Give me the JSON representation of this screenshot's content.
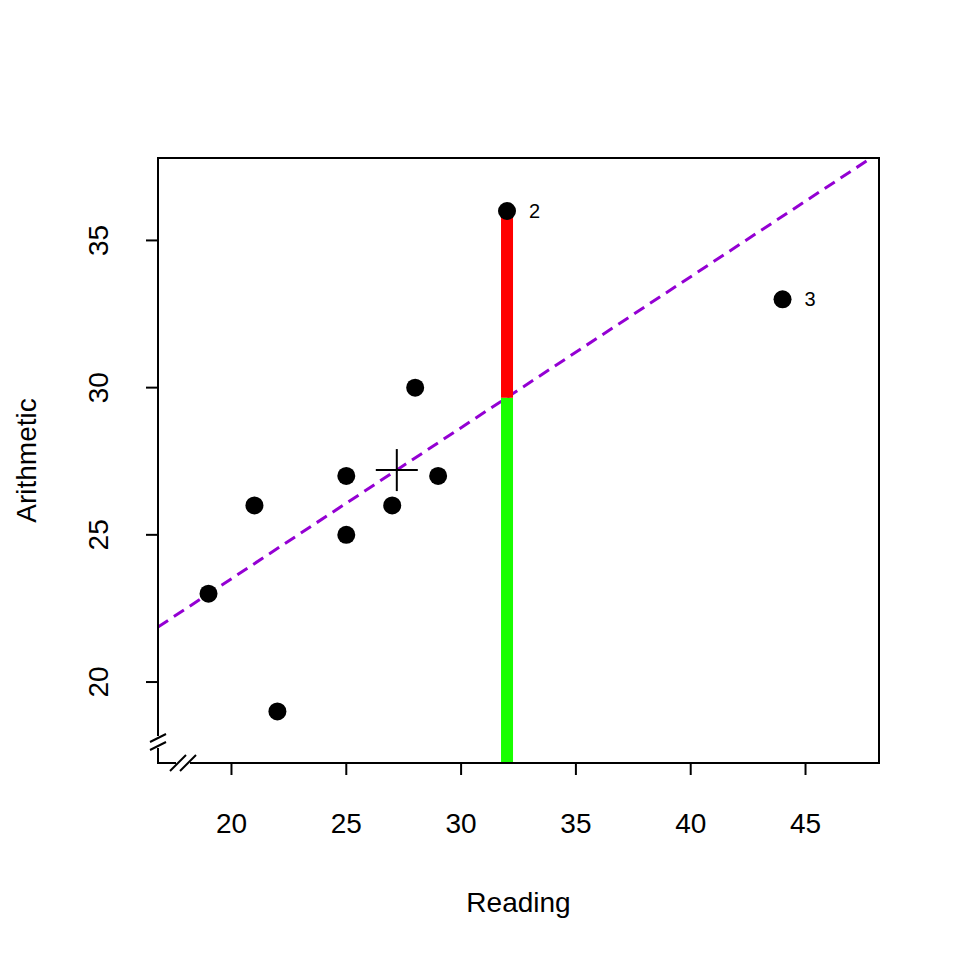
{
  "chart_data": {
    "type": "scatter",
    "x_label": "Reading",
    "y_label": "Arithmetic",
    "x": [
      19,
      21,
      22,
      25,
      25,
      27,
      28,
      29,
      32,
      44
    ],
    "values": [
      23,
      26,
      19,
      27,
      25,
      26,
      30,
      27,
      36,
      33
    ],
    "point_labels": [
      null,
      null,
      null,
      null,
      null,
      null,
      null,
      null,
      "2",
      "3"
    ],
    "color": "#000000",
    "marker": "circle",
    "fit": {
      "intercept": 13.25,
      "slope": 0.513,
      "color": "#9400d3",
      "line_style": "dashed"
    },
    "centroid": {
      "x": 27.2,
      "y": 27.2
    },
    "residual_point": {
      "x": 32,
      "y": 36,
      "fitted": 29.66,
      "colors": [
        "#ff0000",
        "#19ff00"
      ]
    },
    "xlim": [
      16.8,
      48.2
    ],
    "xticks": [
      20,
      25,
      30,
      35,
      40,
      45
    ],
    "ylim": [
      17.25,
      37.8
    ],
    "yticks": [
      20,
      25,
      30,
      35
    ],
    "grid": false
  }
}
